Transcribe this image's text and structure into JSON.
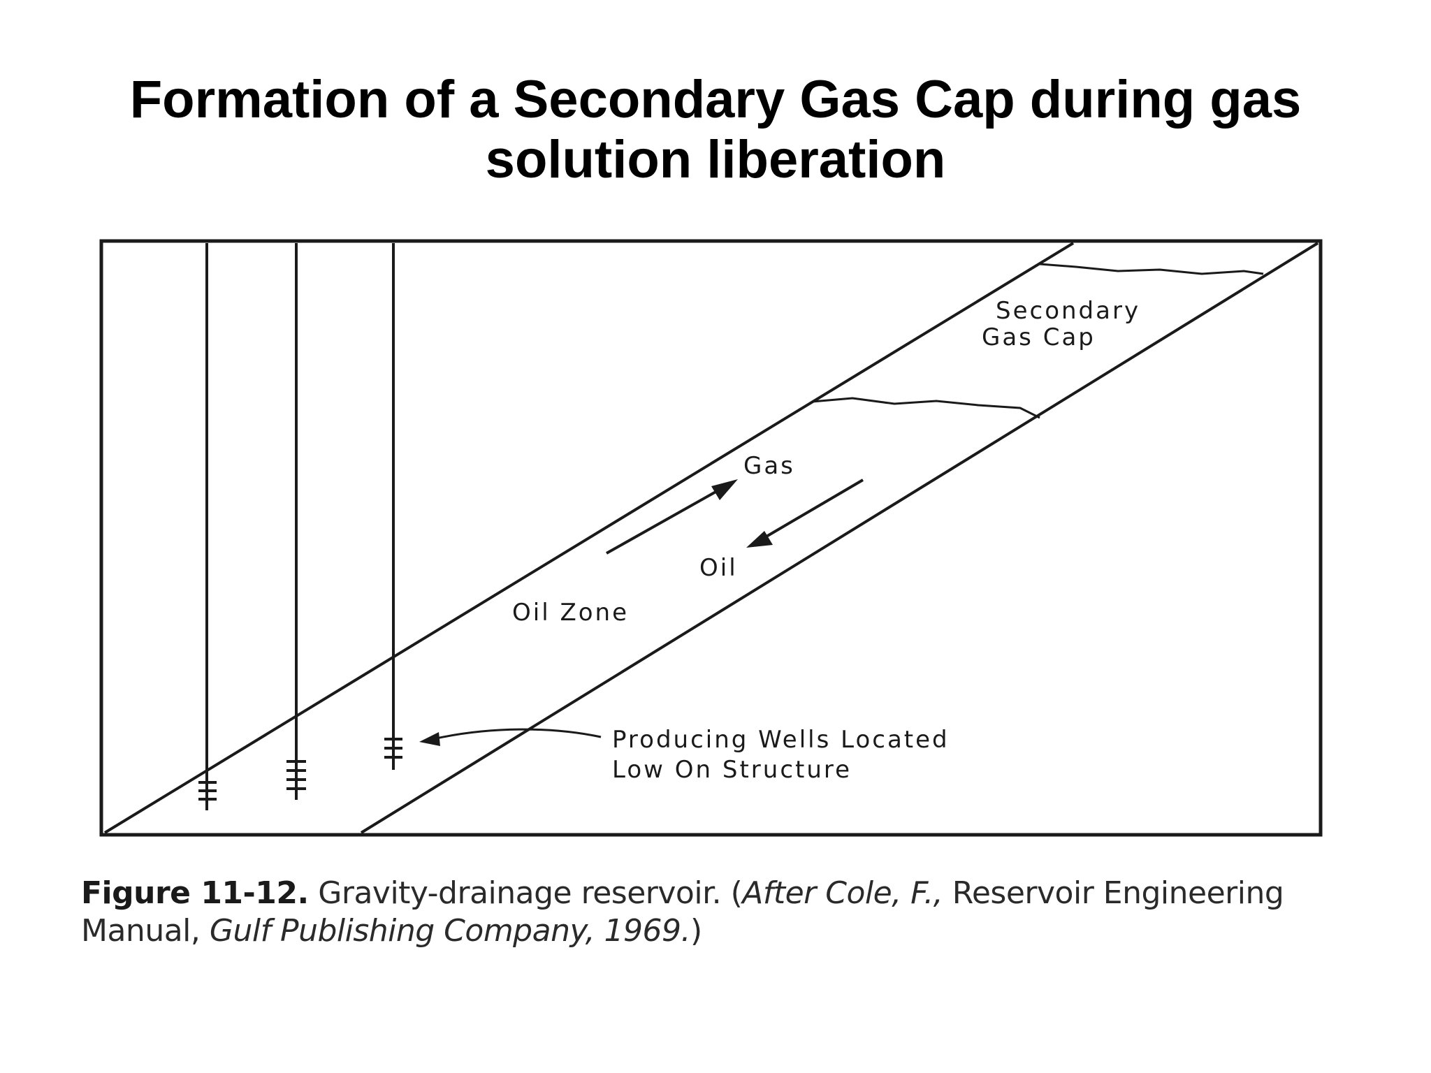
{
  "title": {
    "line1": "Formation of a Secondary Gas Cap during gas",
    "line2": "solution liberation"
  },
  "diagram": {
    "labels": {
      "secondary_gas_cap_line1": "Secondary",
      "secondary_gas_cap_line2": "Gas Cap",
      "gas": "Gas",
      "oil": "Oil",
      "oil_zone": "Oil Zone",
      "wells_line1": "Producing Wells Located",
      "wells_line2": "Low On Structure"
    }
  },
  "caption": {
    "figure_number": "Figure 11-12.",
    "text1": " Gravity-drainage reservoir. (",
    "italic1": "After Cole, F.,",
    "text2": " Reservoir Engineering Manual, ",
    "italic2": "Gulf Publishing Company, 1969.",
    "text3": ")"
  }
}
